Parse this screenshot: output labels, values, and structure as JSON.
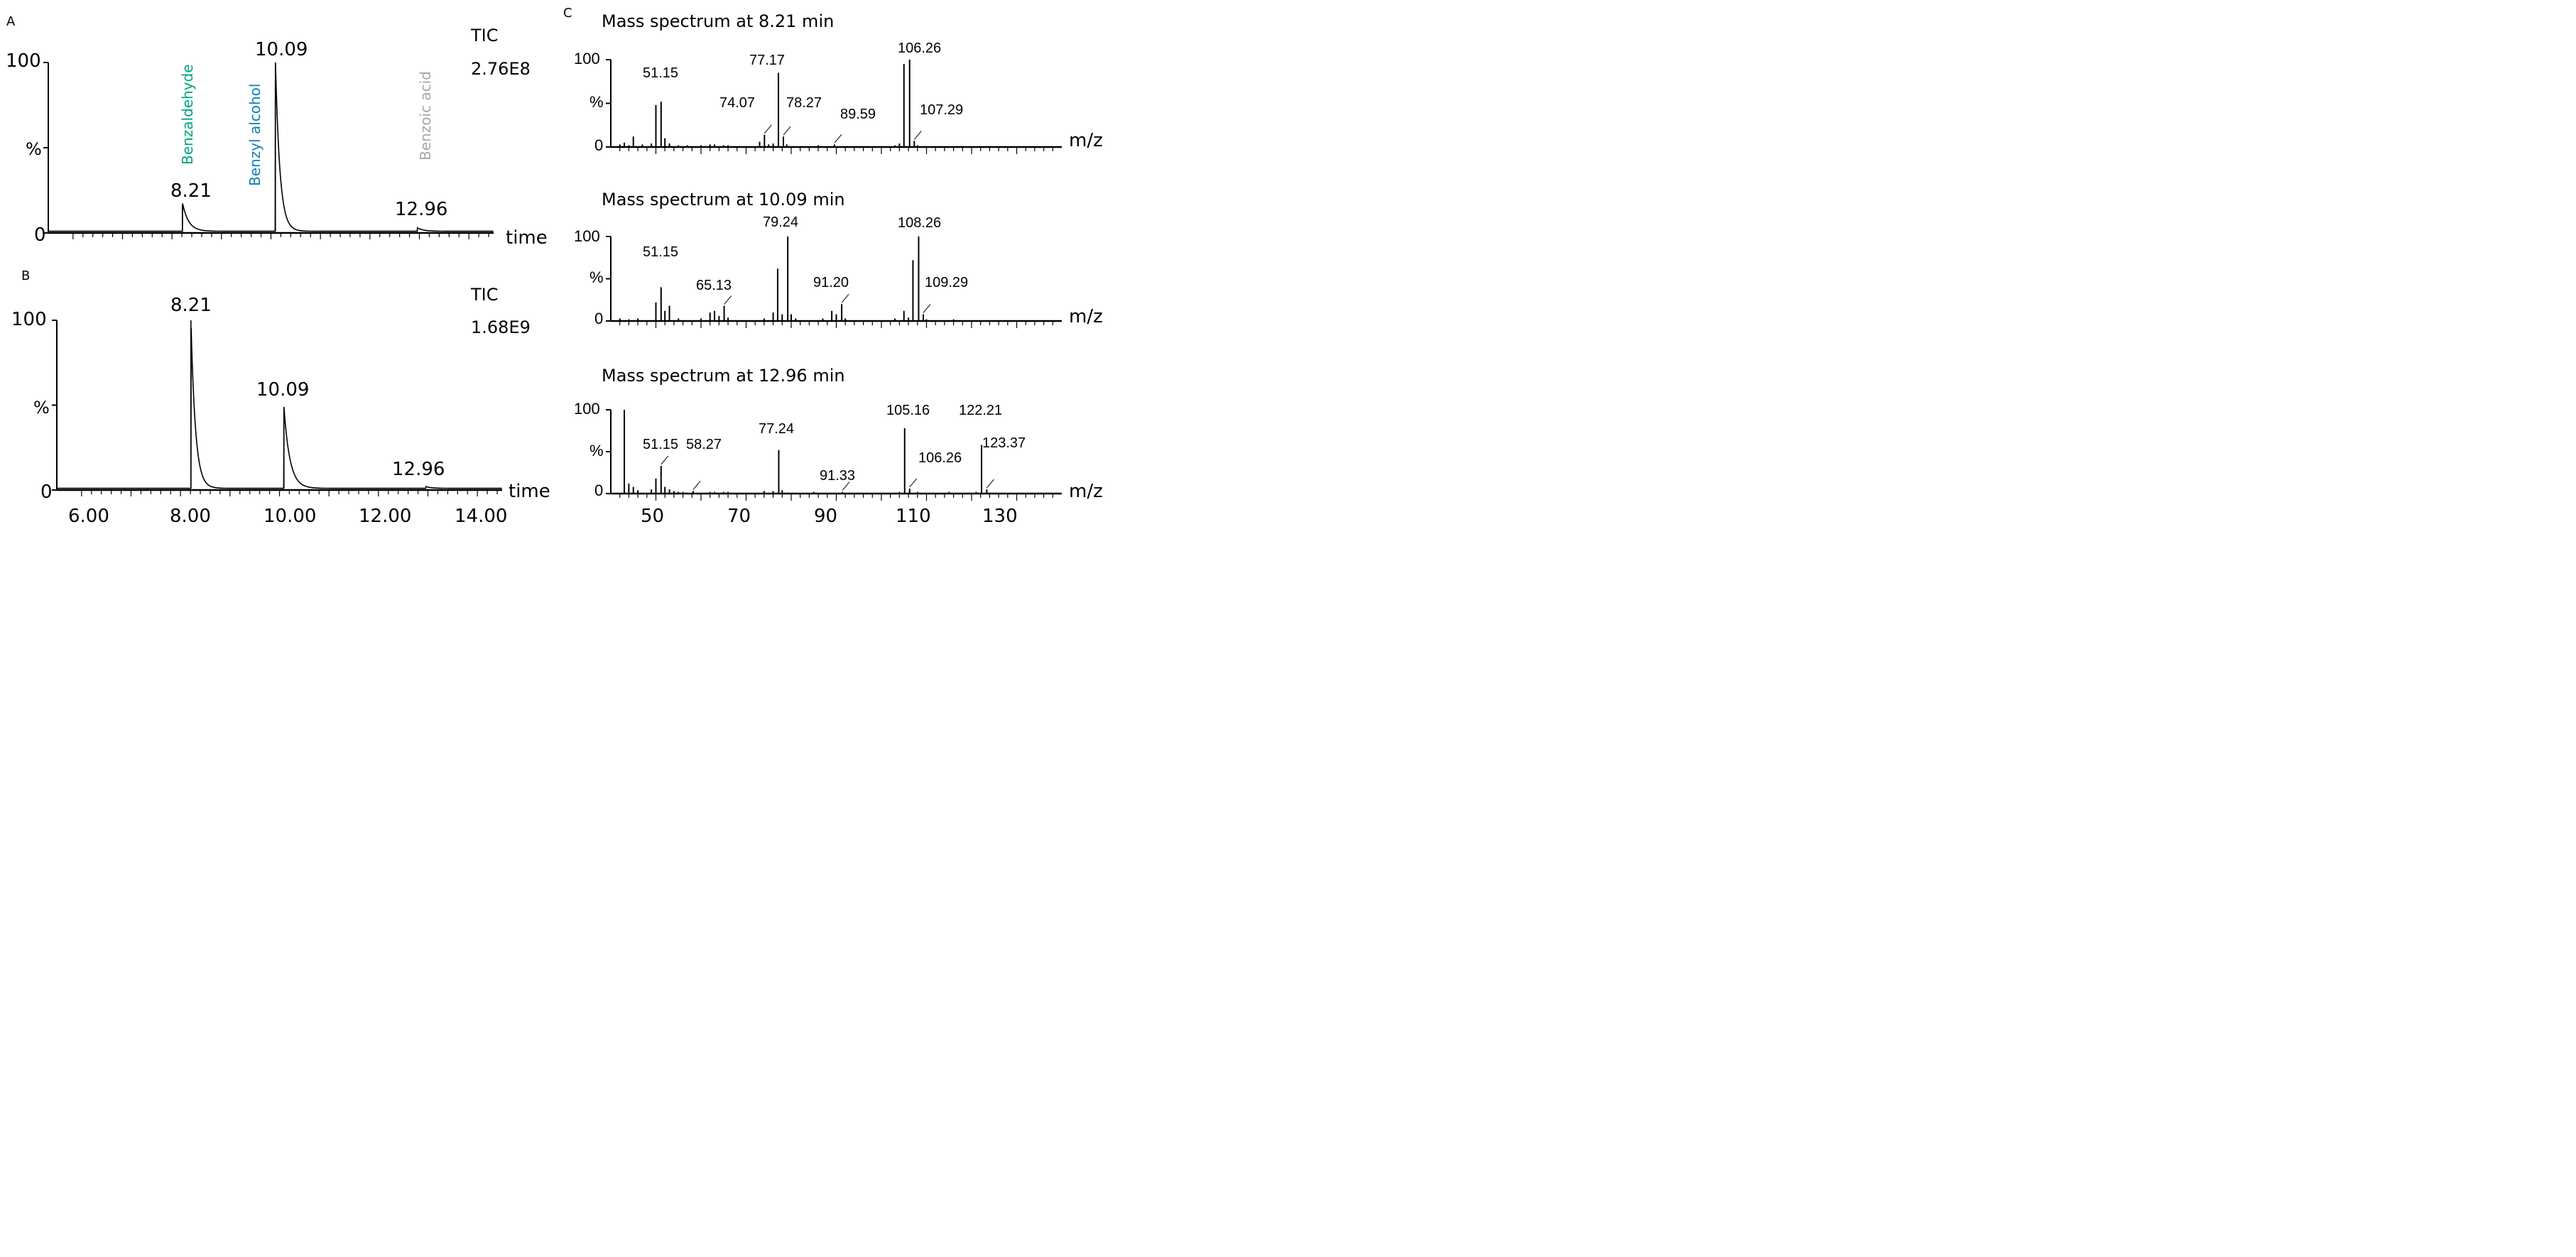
{
  "chart_data": [
    {
      "panel": "A",
      "type": "line",
      "title": "",
      "xlabel": "time",
      "ylabel": "%",
      "y_ticks": [
        "100",
        "%",
        "0"
      ],
      "xlim": [
        5.5,
        14.5
      ],
      "ylim": [
        0,
        100
      ],
      "tic": "TIC",
      "tic_value": "2.76E8",
      "peaks": [
        {
          "rt": 8.21,
          "height": 17,
          "label": "8.21"
        },
        {
          "rt": 10.09,
          "height": 100,
          "label": "10.09"
        },
        {
          "rt": 12.96,
          "height": 2,
          "label": "12.96"
        }
      ],
      "compounds": [
        {
          "name": "Benzaldehyde",
          "color": "#00a37a"
        },
        {
          "name": "Benzyl alcohol",
          "color": "#0f7fb5"
        },
        {
          "name": "Benzoic acid",
          "color": "#a6a6a6"
        }
      ]
    },
    {
      "panel": "B",
      "type": "line",
      "title": "",
      "xlabel": "time",
      "ylabel": "%",
      "y_ticks": [
        "100",
        "%",
        "0"
      ],
      "x_ticks": [
        "6.00",
        "8.00",
        "10.00",
        "12.00",
        "14.00"
      ],
      "x_tick_values": [
        6,
        8,
        10,
        12,
        14
      ],
      "xlim": [
        5.5,
        14.5
      ],
      "ylim": [
        0,
        100
      ],
      "tic": "TIC",
      "tic_value": "1.68E9",
      "peaks": [
        {
          "rt": 8.21,
          "height": 100,
          "label": "8.21"
        },
        {
          "rt": 10.09,
          "height": 48,
          "label": "10.09"
        },
        {
          "rt": 12.96,
          "height": 1,
          "label": "12.96"
        }
      ]
    },
    {
      "panel": "C",
      "type": "bar",
      "title": "Mass spectrum at 8.21 min",
      "xlabel": "m/z",
      "y_ticks": [
        "100",
        "%",
        "0"
      ],
      "xlim": [
        40,
        140
      ],
      "ylim": [
        0,
        100
      ],
      "labels": [
        {
          "mz": 51.15,
          "text": "51.15"
        },
        {
          "mz": 74.07,
          "text": "74.07"
        },
        {
          "mz": 77.17,
          "text": "77.17"
        },
        {
          "mz": 78.27,
          "text": "78.27"
        },
        {
          "mz": 89.59,
          "text": "89.59"
        },
        {
          "mz": 106.26,
          "text": "106.26"
        },
        {
          "mz": 107.29,
          "text": "107.29"
        }
      ],
      "peaks": [
        [
          42,
          3
        ],
        [
          43,
          5
        ],
        [
          44,
          2
        ],
        [
          45,
          12
        ],
        [
          47,
          3
        ],
        [
          49,
          4
        ],
        [
          50,
          48
        ],
        [
          51.15,
          52
        ],
        [
          52,
          10
        ],
        [
          53,
          4
        ],
        [
          55,
          2
        ],
        [
          57,
          2
        ],
        [
          60,
          2
        ],
        [
          62,
          3
        ],
        [
          63,
          3
        ],
        [
          65,
          2
        ],
        [
          66,
          2
        ],
        [
          73,
          6
        ],
        [
          74.07,
          14
        ],
        [
          75,
          3
        ],
        [
          76,
          4
        ],
        [
          77.17,
          85
        ],
        [
          78.27,
          12
        ],
        [
          79,
          3
        ],
        [
          86,
          2
        ],
        [
          89.59,
          3
        ],
        [
          103,
          2
        ],
        [
          104,
          4
        ],
        [
          105,
          95
        ],
        [
          106.26,
          100
        ],
        [
          107.29,
          7
        ],
        [
          108,
          2
        ],
        [
          118,
          1
        ]
      ]
    },
    {
      "panel": "C",
      "type": "bar",
      "title": "Mass spectrum at 10.09 min",
      "xlabel": "m/z",
      "y_ticks": [
        "100",
        "%",
        "0"
      ],
      "xlim": [
        40,
        140
      ],
      "ylim": [
        0,
        100
      ],
      "labels": [
        {
          "mz": 51.15,
          "text": "51.15"
        },
        {
          "mz": 65.13,
          "text": "65.13"
        },
        {
          "mz": 79.24,
          "text": "79.24"
        },
        {
          "mz": 91.2,
          "text": "91.20"
        },
        {
          "mz": 108.26,
          "text": "108.26"
        },
        {
          "mz": 109.29,
          "text": "109.29"
        }
      ],
      "peaks": [
        [
          42,
          3
        ],
        [
          44,
          2
        ],
        [
          46,
          3
        ],
        [
          50,
          22
        ],
        [
          51.15,
          40
        ],
        [
          52,
          12
        ],
        [
          53,
          18
        ],
        [
          55,
          3
        ],
        [
          60,
          3
        ],
        [
          62,
          10
        ],
        [
          63,
          12
        ],
        [
          64,
          6
        ],
        [
          65.13,
          18
        ],
        [
          66,
          4
        ],
        [
          74,
          3
        ],
        [
          76,
          10
        ],
        [
          77,
          62
        ],
        [
          78,
          8
        ],
        [
          79.24,
          100
        ],
        [
          80,
          8
        ],
        [
          81,
          3
        ],
        [
          87,
          3
        ],
        [
          89,
          12
        ],
        [
          90,
          8
        ],
        [
          91.2,
          20
        ],
        [
          92,
          3
        ],
        [
          103,
          3
        ],
        [
          105,
          12
        ],
        [
          106,
          4
        ],
        [
          107,
          72
        ],
        [
          108.26,
          100
        ],
        [
          109.29,
          8
        ],
        [
          110,
          2
        ],
        [
          116,
          2
        ]
      ]
    },
    {
      "panel": "C",
      "type": "bar",
      "title": "Mass spectrum at 12.96 min",
      "xlabel": "m/z",
      "y_ticks": [
        "100",
        "%",
        "0"
      ],
      "x_ticks": [
        "50",
        "70",
        "90",
        "110",
        "130"
      ],
      "x_tick_values": [
        50,
        70,
        90,
        110,
        130
      ],
      "xlim": [
        40,
        140
      ],
      "ylim": [
        0,
        100
      ],
      "labels": [
        {
          "mz": 51.15,
          "text": "51.15"
        },
        {
          "mz": 58.27,
          "text": "58.27"
        },
        {
          "mz": 77.24,
          "text": "77.24"
        },
        {
          "mz": 91.33,
          "text": "91.33"
        },
        {
          "mz": 105.16,
          "text": "105.16"
        },
        {
          "mz": 106.26,
          "text": "106.26"
        },
        {
          "mz": 122.21,
          "text": "122.21"
        },
        {
          "mz": 123.37,
          "text": "123.37"
        }
      ],
      "peaks": [
        [
          43,
          100
        ],
        [
          44,
          12
        ],
        [
          45,
          8
        ],
        [
          46,
          4
        ],
        [
          49,
          5
        ],
        [
          50,
          18
        ],
        [
          51.15,
          33
        ],
        [
          52,
          8
        ],
        [
          53,
          5
        ],
        [
          54,
          3
        ],
        [
          55,
          2
        ],
        [
          56,
          2
        ],
        [
          58.27,
          3
        ],
        [
          62,
          2
        ],
        [
          63,
          2
        ],
        [
          65,
          2
        ],
        [
          66,
          2
        ],
        [
          74,
          3
        ],
        [
          76,
          3
        ],
        [
          77.24,
          52
        ],
        [
          78,
          4
        ],
        [
          85,
          2
        ],
        [
          91.33,
          2
        ],
        [
          104,
          2
        ],
        [
          105.16,
          78
        ],
        [
          106.26,
          6
        ],
        [
          108,
          2
        ],
        [
          115,
          2
        ],
        [
          121,
          2
        ],
        [
          122.21,
          58
        ],
        [
          123.37,
          5
        ],
        [
          124,
          1
        ]
      ]
    }
  ],
  "panels": {
    "a": "A",
    "b": "B",
    "c": "C"
  }
}
